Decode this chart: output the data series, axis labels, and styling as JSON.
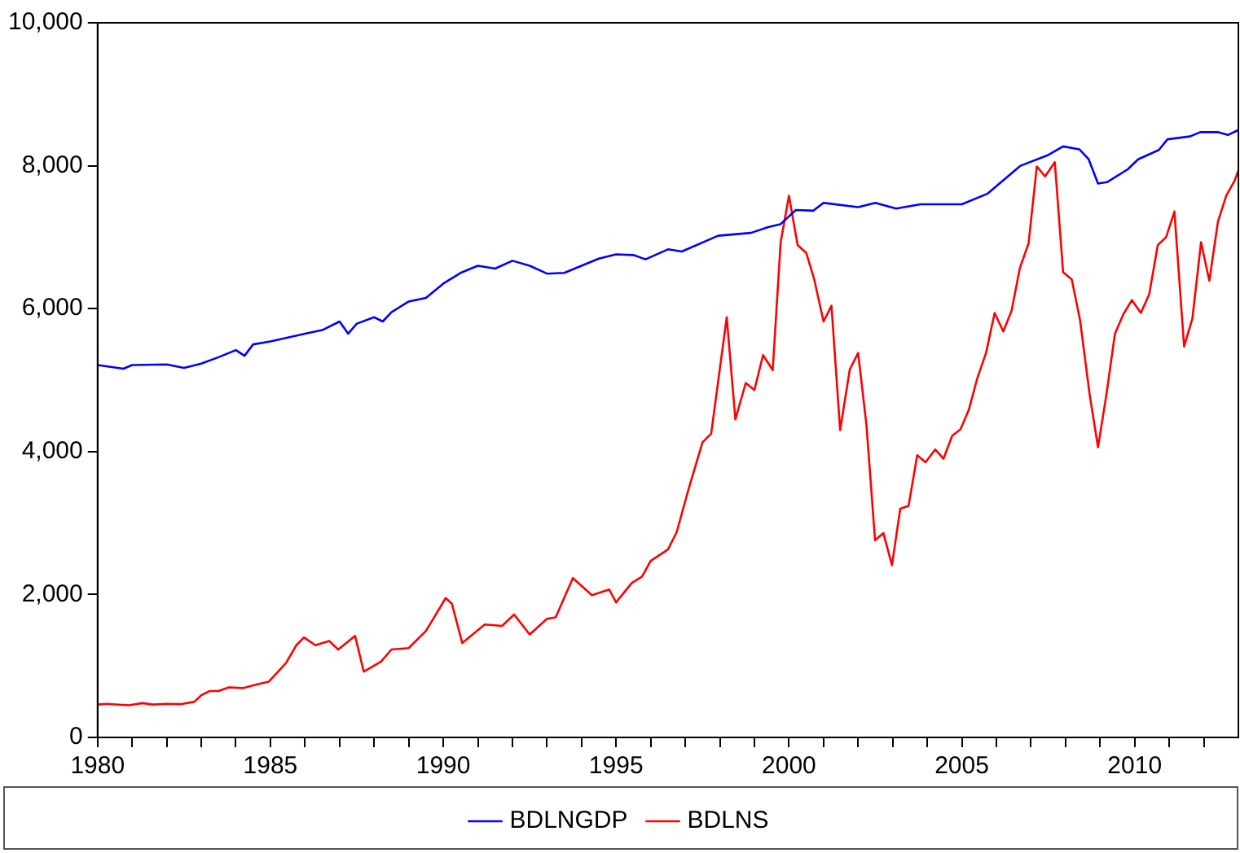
{
  "chart_data": {
    "type": "line",
    "series": [
      {
        "name": "BDLNGDP",
        "color": "#0000ff",
        "x": [
          1980,
          1980.75,
          1981,
          1982,
          1982.5,
          1983,
          1983.5,
          1984,
          1984.25,
          1984.5,
          1985,
          1986,
          1986.5,
          1987,
          1987.25,
          1987.5,
          1988,
          1988.25,
          1988.5,
          1989,
          1989.5,
          1990,
          1990.5,
          1991,
          1991.5,
          1992,
          1992.5,
          1993,
          1993.5,
          1994,
          1994.5,
          1995,
          1995.5,
          1995.85,
          1996.5,
          1996.9,
          1997.95,
          1998.9,
          1999.4,
          1999.75,
          2000.2,
          2000.7,
          2001,
          2002,
          2002.5,
          2003.1,
          2003.8,
          2005,
          2005.75,
          2006.7,
          2007.5,
          2007.93,
          2008.4,
          2008.67,
          2008.94,
          2009.2,
          2009.8,
          2010.1,
          2010.7,
          2010.95,
          2011.6,
          2011.9,
          2012.4,
          2012.7,
          2013
        ],
        "values": [
          5210,
          5160,
          5210,
          5220,
          5170,
          5230,
          5320,
          5420,
          5340,
          5500,
          5540,
          5650,
          5700,
          5820,
          5650,
          5790,
          5880,
          5820,
          5950,
          6100,
          6150,
          6350,
          6500,
          6600,
          6560,
          6670,
          6600,
          6490,
          6500,
          6600,
          6700,
          6760,
          6750,
          6690,
          6830,
          6800,
          7020,
          7060,
          7140,
          7180,
          7380,
          7370,
          7480,
          7420,
          7480,
          7400,
          7460,
          7460,
          7610,
          8000,
          8150,
          8270,
          8230,
          8090,
          7750,
          7770,
          7950,
          8090,
          8220,
          8370,
          8410,
          8470,
          8470,
          8430,
          8500
        ]
      },
      {
        "name": "BDLNS",
        "color": "#ff0000",
        "x": [
          1980,
          1980.25,
          1980.9,
          1981.3,
          1981.6,
          1982,
          1982.4,
          1982.8,
          1983,
          1983.25,
          1983.5,
          1983.8,
          1984.2,
          1984.6,
          1984.95,
          1985.45,
          1985.75,
          1985.97,
          1986.3,
          1986.7,
          1986.96,
          1987.45,
          1987.7,
          1988.2,
          1988.5,
          1989,
          1989.5,
          1990.07,
          1990.25,
          1990.55,
          1991.2,
          1991.7,
          1992.05,
          1992.5,
          1993,
          1993.25,
          1993.75,
          1994.3,
          1994.8,
          1995,
          1995.45,
          1995.75,
          1996,
          1996.5,
          1996.75,
          1997.1,
          1997.5,
          1997.75,
          1998.2,
          1998.45,
          1998.75,
          1999,
          1999.25,
          1999.53,
          1999.76,
          2000,
          2000.25,
          2000.5,
          2000.73,
          2001,
          2001.23,
          2001.48,
          2001.76,
          2002,
          2002.24,
          2002.49,
          2002.73,
          2002.98,
          2003.22,
          2003.46,
          2003.71,
          2003.95,
          2004.23,
          2004.47,
          2004.72,
          2004.96,
          2005.2,
          2005.45,
          2005.7,
          2005.95,
          2006.2,
          2006.44,
          2006.68,
          2006.93,
          2007.17,
          2007.41,
          2007.69,
          2007.93,
          2008.18,
          2008.42,
          2008.7,
          2008.94,
          2009.19,
          2009.43,
          2009.67,
          2009.92,
          2010.18,
          2010.42,
          2010.67,
          2010.91,
          2011.15,
          2011.43,
          2011.67,
          2011.92,
          2012.16,
          2012.41,
          2012.65,
          2012.89,
          2013
        ],
        "values": [
          460,
          470,
          450,
          480,
          460,
          470,
          465,
          500,
          590,
          650,
          650,
          700,
          690,
          740,
          780,
          1040,
          1290,
          1400,
          1290,
          1350,
          1230,
          1420,
          920,
          1060,
          1230,
          1250,
          1490,
          1950,
          1870,
          1320,
          1580,
          1560,
          1720,
          1440,
          1660,
          1680,
          2230,
          1990,
          2070,
          1890,
          2160,
          2250,
          2470,
          2630,
          2870,
          3480,
          4130,
          4250,
          5880,
          4450,
          4960,
          4860,
          5350,
          5140,
          6930,
          7580,
          6890,
          6780,
          6410,
          5820,
          6040,
          4300,
          5150,
          5380,
          4380,
          2760,
          2860,
          2410,
          3200,
          3240,
          3950,
          3850,
          4030,
          3900,
          4220,
          4310,
          4580,
          5030,
          5380,
          5940,
          5680,
          5970,
          6570,
          6910,
          7990,
          7850,
          8050,
          6510,
          6410,
          5840,
          4790,
          4060,
          4820,
          5650,
          5920,
          6120,
          5940,
          6200,
          6890,
          7000,
          7360,
          5470,
          5860,
          6930,
          6390,
          7220,
          7580,
          7790,
          7930
        ]
      }
    ],
    "xlim": [
      1980,
      2013
    ],
    "xticks": [
      1980,
      {
        "value": 1981,
        "label": null
      },
      {
        "value": 1982,
        "label": null
      },
      {
        "value": 1983,
        "label": null
      },
      {
        "value": 1984,
        "label": null
      },
      1985,
      {
        "value": 1986,
        "label": null
      },
      {
        "value": 1987,
        "label": null
      },
      {
        "value": 1988,
        "label": null
      },
      {
        "value": 1989,
        "label": null
      },
      1990,
      {
        "value": 1991,
        "label": null
      },
      {
        "value": 1992,
        "label": null
      },
      {
        "value": 1993,
        "label": null
      },
      {
        "value": 1994,
        "label": null
      },
      1995,
      {
        "value": 1996,
        "label": null
      },
      {
        "value": 1997,
        "label": null
      },
      {
        "value": 1998,
        "label": null
      },
      {
        "value": 1999,
        "label": null
      },
      2000,
      {
        "value": 2001,
        "label": null
      },
      {
        "value": 2002,
        "label": null
      },
      {
        "value": 2003,
        "label": null
      },
      {
        "value": 2004,
        "label": null
      },
      2005,
      {
        "value": 2006,
        "label": null
      },
      {
        "value": 2007,
        "label": null
      },
      {
        "value": 2008,
        "label": null
      },
      {
        "value": 2009,
        "label": null
      },
      2010,
      {
        "value": 2011,
        "label": null
      },
      {
        "value": 2012,
        "label": null
      }
    ],
    "ylim": [
      0,
      10000
    ],
    "yticks": [
      0,
      {
        "value": 2000,
        "label": "2,000"
      },
      {
        "value": 4000,
        "label": "4,000"
      },
      {
        "value": 6000,
        "label": "6,000"
      },
      {
        "value": 8000,
        "label": "8,000"
      },
      {
        "value": 10000,
        "label": "10,000"
      }
    ],
    "grid": false,
    "legend": "bottom",
    "marker": "none",
    "line_style": "solid"
  }
}
